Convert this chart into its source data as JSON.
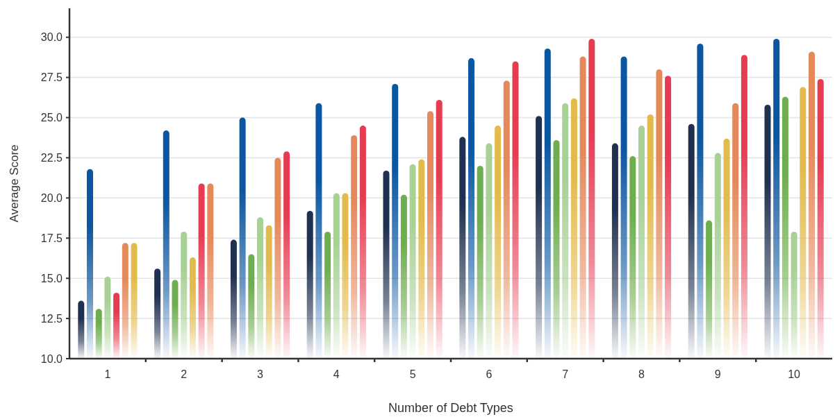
{
  "chart_data": {
    "type": "bar",
    "xlabel": "Number of Debt Types",
    "ylabel": "Average Score",
    "categories": [
      "1",
      "2",
      "3",
      "4",
      "5",
      "6",
      "7",
      "8",
      "9",
      "10"
    ],
    "series": [
      {
        "color": "#1f3050",
        "values": [
          13.6,
          15.6,
          17.4,
          19.2,
          21.7,
          23.8,
          25.1,
          23.4,
          24.6,
          25.8
        ]
      },
      {
        "color": "#0a56a0",
        "values": [
          21.8,
          24.2,
          25.0,
          25.9,
          27.1,
          28.7,
          29.3,
          28.8,
          29.6,
          29.9
        ]
      },
      {
        "color": "#6fae50",
        "values": [
          13.1,
          14.9,
          16.5,
          17.9,
          20.2,
          22.0,
          23.6,
          22.6,
          18.6,
          26.3
        ]
      },
      {
        "color": "#a8d196",
        "values": [
          15.1,
          17.9,
          18.8,
          20.3,
          22.1,
          23.4,
          25.9,
          24.5,
          22.8,
          17.9
        ]
      },
      {
        "colors": [
          "#e63c52",
          "#e3bb4c",
          "#e3bb4c",
          "#e3bb4c",
          "#e3bb4c",
          "#e3bb4c",
          "#e3bb4c",
          "#e3bb4c",
          "#e3bb4c",
          "#e3bb4c"
        ],
        "values": [
          14.1,
          16.3,
          18.3,
          20.3,
          22.4,
          24.5,
          26.2,
          25.2,
          23.7,
          26.9
        ]
      },
      {
        "colors": [
          "#e5885a",
          "#e63c52",
          "#e5885a",
          "#e5885a",
          "#e5885a",
          "#e5885a",
          "#e5885a",
          "#e5885a",
          "#e5885a",
          "#e5885a"
        ],
        "values": [
          17.2,
          20.9,
          22.5,
          23.9,
          25.4,
          27.3,
          28.8,
          28.0,
          25.9,
          29.1
        ]
      },
      {
        "colors": [
          "#e3bb4c",
          "#e5885a",
          "#e63c52",
          "#e63c52",
          "#e63c52",
          "#e63c52",
          "#e63c52",
          "#e63c52",
          "#e63c52",
          "#e63c52"
        ],
        "values": [
          17.2,
          20.9,
          22.9,
          24.5,
          26.1,
          28.5,
          29.9,
          27.6,
          28.9,
          27.4
        ]
      }
    ],
    "ylim": [
      10,
      31.8
    ],
    "yticks": [
      {
        "value": 10,
        "label": "10.0"
      },
      {
        "value": 12.5,
        "label": "12.5"
      },
      {
        "value": 15,
        "label": "15.0"
      },
      {
        "value": 17.5,
        "label": "17.5"
      },
      {
        "value": 20,
        "label": "20.0"
      },
      {
        "value": 22.5,
        "label": "22.5"
      },
      {
        "value": 25,
        "label": "25.0"
      },
      {
        "value": 27.5,
        "label": "27.5"
      },
      {
        "value": 30,
        "label": "30.0"
      }
    ],
    "grid": "y"
  }
}
